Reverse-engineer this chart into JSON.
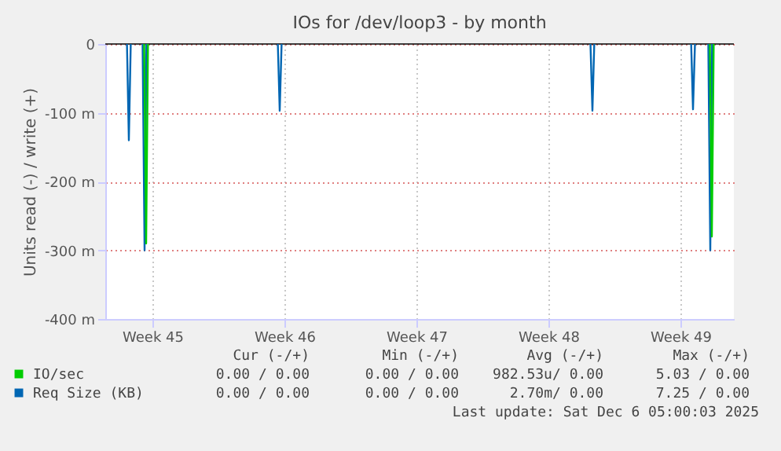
{
  "chart_data": {
    "type": "line",
    "title": "IOs for /dev/loop3 - by month",
    "ylabel": "Units read (-) / write (+)",
    "xlim": [
      "2025-11-04T00:00",
      "2025-12-07T08:00"
    ],
    "xticks": [
      {
        "value": "2025-11-06T12:00",
        "label": "Week 45"
      },
      {
        "value": "2025-11-13T12:00",
        "label": "Week 46"
      },
      {
        "value": "2025-11-20T12:00",
        "label": "Week 47"
      },
      {
        "value": "2025-11-27T12:00",
        "label": "Week 48"
      },
      {
        "value": "2025-12-04T12:00",
        "label": "Week 49"
      }
    ],
    "ylim": [
      -400,
      0
    ],
    "yticks": [
      {
        "value": -400,
        "label": "-400 m"
      },
      {
        "value": -300,
        "label": "-300 m"
      },
      {
        "value": -200,
        "label": "-200 m"
      },
      {
        "value": -100,
        "label": "-100 m"
      },
      0
    ],
    "grid": true,
    "legend": "bottom left",
    "line_style": "solid",
    "series": [
      {
        "name": "IO/sec",
        "color": "#00cc00",
        "x": [
          "2025-11-06T01:30",
          "2025-11-06T04:00",
          "2025-11-06T06:20",
          "2025-11-20T00:00",
          "2025-12-06T01:30",
          "2025-12-06T04:00",
          "2025-12-06T06:20"
        ],
        "values": [
          0,
          -290,
          0,
          null,
          0,
          -280,
          0
        ]
      },
      {
        "name": "Req Size (KB)",
        "color": "#0066b3",
        "x": [
          "2025-11-05T03:36",
          "2025-11-05T06:00",
          "2025-11-05T08:24",
          "2025-11-05T16:00",
          "2025-11-05T23:30",
          "2025-11-06T02:00",
          "2025-11-06T04:20",
          "2025-11-09T00:00",
          "2025-11-13T03:36",
          "2025-11-13T06:00",
          "2025-11-13T08:24",
          "2025-11-20T00:00",
          "2025-11-29T17:30",
          "2025-11-29T20:00",
          "2025-11-29T22:20",
          "2025-12-02T00:00",
          "2025-12-05T01:40",
          "2025-12-05T04:00",
          "2025-12-05T06:30",
          "2025-12-05T16:00",
          "2025-12-05T23:30",
          "2025-12-06T02:00",
          "2025-12-06T04:20"
        ],
        "values": [
          0,
          -140,
          0,
          null,
          0,
          -300,
          0,
          null,
          0,
          -97,
          0,
          null,
          0,
          -97,
          0,
          null,
          0,
          -95,
          0,
          null,
          0,
          -300,
          0
        ]
      }
    ],
    "annotations": [
      "Cur (-/+)",
      "Min (-/+)",
      "Avg (-/+)",
      "Max (-/+)",
      "0.00 / 0.00",
      "0.00 / 0.00",
      "982.53u/ 0.00",
      "5.03 / 0.00",
      "0.00 / 0.00",
      "0.00 / 0.00",
      "2.70m/ 0.00",
      "7.25 / 0.00",
      "Last update: Sat Dec  6 05:00:03 2025"
    ]
  }
}
